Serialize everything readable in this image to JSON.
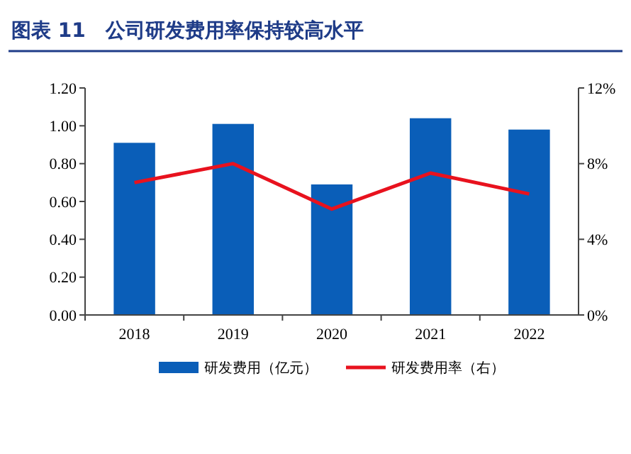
{
  "chart_data": {
    "type": "bar",
    "title": "图表 11　公司研发费用率保持较高水平",
    "categories": [
      "2018",
      "2019",
      "2020",
      "2021",
      "2022"
    ],
    "series": [
      {
        "name": "研发费用（亿元）",
        "color": "#0a5eb8",
        "values": [
          0.91,
          1.01,
          0.69,
          1.04,
          0.98
        ]
      },
      {
        "name": "研发费用率（右）",
        "type": "line",
        "axis": "y2",
        "color": "#e8121e",
        "values": [
          7.0,
          8.0,
          5.6,
          7.5,
          6.4
        ]
      }
    ],
    "ylim": [
      0,
      1.2
    ],
    "yticks": [
      {
        "value": 0,
        "label": "0.00"
      },
      {
        "value": 0.2,
        "label": "0.20"
      },
      {
        "value": 0.4,
        "label": "0.40"
      },
      {
        "value": 0.6,
        "label": "0.60"
      },
      {
        "value": 0.8,
        "label": "0.80"
      },
      {
        "value": 1.0,
        "label": "1.00"
      },
      {
        "value": 1.2,
        "label": "1.20"
      }
    ],
    "y2lim": [
      0,
      12
    ],
    "y2ticks": [
      {
        "value": 0,
        "label": "0%"
      },
      {
        "value": 4,
        "label": "4%"
      },
      {
        "value": 8,
        "label": "8%"
      },
      {
        "value": 12,
        "label": "12%"
      }
    ],
    "grid": false,
    "legend": "bottom",
    "marker": "none",
    "line_style": "solid"
  }
}
